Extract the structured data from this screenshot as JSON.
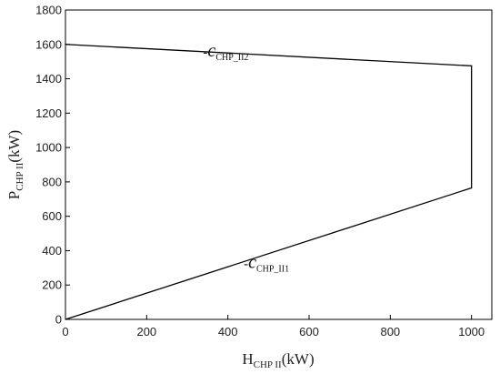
{
  "chart_data": {
    "type": "line",
    "x_ticks": [
      "0",
      "200",
      "400",
      "600",
      "800",
      "1000"
    ],
    "y_ticks": [
      "0",
      "200",
      "400",
      "600",
      "800",
      "1000",
      "1200",
      "1400",
      "1600",
      "1800"
    ],
    "xlim": [
      0,
      1050
    ],
    "ylim": [
      0,
      1800
    ],
    "xlabel": {
      "main": "H",
      "sub": "CHP II",
      "unit": "(kW)"
    },
    "ylabel": {
      "main": "P",
      "sub": "CHP II",
      "unit": "(kW)"
    },
    "series": [
      {
        "points": [
          {
            "x": 0,
            "y": 0
          },
          {
            "x": 1000,
            "y": 765
          },
          {
            "x": 1000,
            "y": 1475
          },
          {
            "x": 0,
            "y": 1600
          }
        ]
      }
    ],
    "annotations": [
      {
        "prefix": "-",
        "symbol": "c",
        "sub": "CHP_II2",
        "x": 395,
        "y": 1530
      },
      {
        "prefix": "-",
        "symbol": "c",
        "sub": "CHP_II1",
        "x": 495,
        "y": 300
      }
    ],
    "grid": false,
    "line_color": "#000000"
  }
}
